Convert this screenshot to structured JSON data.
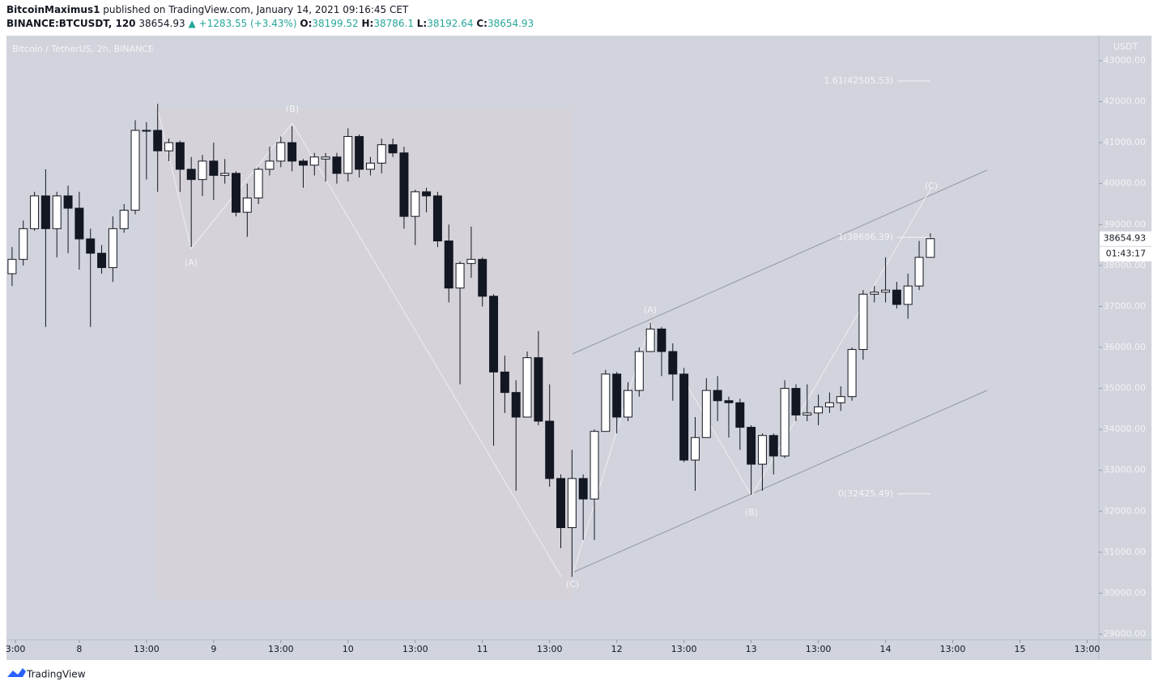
{
  "header": {
    "author": "BitcoinMaximus1",
    "published": "published on TradingView.com, January 14, 2021 09:16:45 CET",
    "symbol": "BINANCE:BTCUSDT, 120",
    "change": "+1283.55 (+3.43%)",
    "o_label": "O:",
    "h_label": "H:",
    "l_label": "L:",
    "c_label": "C:"
  },
  "footer": {
    "logo": "TradingView"
  },
  "chart_data": {
    "type": "candlestick",
    "title": "Bitcoin / TetherUS, 2h, BINANCE",
    "currency": "USDT",
    "countdown": "01:43:17",
    "open": [
      37800,
      38150,
      38900,
      39700,
      38900,
      39700,
      39400,
      38650,
      38300,
      37950,
      38900,
      39350,
      41280,
      41300,
      40800,
      41000,
      40350,
      40100,
      40550,
      40200,
      40250,
      39300,
      39650,
      40350,
      40550,
      41000,
      40550,
      40450,
      40600,
      40650,
      40250,
      41150,
      40350,
      40500,
      40950,
      40750,
      39200,
      39800,
      39700,
      38600,
      37450,
      38050,
      38150,
      37250,
      35400,
      34900,
      34300,
      35750,
      34200,
      32800,
      31600,
      32800,
      32300,
      33950,
      35350,
      34300,
      34950,
      35900,
      36450,
      35900,
      35350,
      33250,
      33800,
      34950,
      34700,
      34650,
      34050,
      33150,
      33850,
      33350,
      35000,
      34350,
      34400,
      34550,
      34650,
      34800,
      35950,
      37300,
      37350,
      37400,
      37050,
      37500,
      38199.52
    ],
    "high": [
      38450,
      39100,
      39800,
      40350,
      39800,
      39950,
      39800,
      38900,
      38500,
      39200,
      39500,
      41550,
      41500,
      41950,
      41100,
      41050,
      40650,
      40700,
      41000,
      40600,
      40300,
      40000,
      40400,
      40900,
      41150,
      41400,
      40600,
      40750,
      40750,
      40750,
      41350,
      41200,
      40650,
      41100,
      41100,
      40900,
      39850,
      39900,
      39800,
      39000,
      38100,
      38950,
      38200,
      37300,
      35800,
      35200,
      35900,
      36400,
      35100,
      32900,
      33500,
      32900,
      34000,
      35450,
      35400,
      35150,
      36000,
      36600,
      36500,
      36100,
      35500,
      34300,
      35250,
      35300,
      34800,
      34750,
      34100,
      33900,
      33900,
      35200,
      35100,
      35100,
      34850,
      34900,
      35050,
      36000,
      37400,
      37500,
      38200,
      37600,
      37800,
      38600,
      38786.1
    ],
    "low": [
      37500,
      38000,
      38850,
      36500,
      38200,
      38300,
      37900,
      36500,
      37800,
      37600,
      38800,
      39250,
      40100,
      39800,
      40550,
      39800,
      38450,
      39700,
      39600,
      40000,
      39200,
      38700,
      39500,
      40200,
      40400,
      40300,
      39900,
      40200,
      40050,
      40000,
      40050,
      40150,
      40200,
      40250,
      40650,
      38900,
      38500,
      39300,
      38450,
      37100,
      35100,
      37700,
      37000,
      33600,
      34400,
      32500,
      34300,
      34100,
      32600,
      31100,
      30400,
      31300,
      31300,
      33950,
      33900,
      34200,
      34800,
      35900,
      35300,
      34700,
      33200,
      32500,
      33800,
      34200,
      33800,
      33500,
      32400,
      32500,
      32900,
      33300,
      34200,
      34200,
      34100,
      34400,
      34450,
      34700,
      35700,
      37100,
      37100,
      36950,
      36700,
      37400,
      38192.64
    ],
    "close": [
      38150,
      38900,
      39700,
      38900,
      39700,
      39400,
      38650,
      38300,
      37950,
      38900,
      39350,
      41300,
      41300,
      40800,
      41000,
      40350,
      40100,
      40550,
      40200,
      40250,
      39300,
      39650,
      40350,
      40550,
      41000,
      40550,
      40450,
      40650,
      40650,
      40250,
      41150,
      40350,
      40500,
      40950,
      40750,
      39200,
      39800,
      39700,
      38600,
      37450,
      38050,
      38150,
      37250,
      35400,
      34900,
      34300,
      35750,
      34200,
      32800,
      31600,
      32800,
      32300,
      33950,
      35350,
      34300,
      34950,
      35900,
      36450,
      35900,
      35350,
      33250,
      33800,
      34950,
      34700,
      34650,
      34050,
      33150,
      33850,
      33350,
      35000,
      34350,
      34400,
      34550,
      34650,
      34800,
      35950,
      37300,
      37350,
      37400,
      37050,
      37500,
      38200,
      38654.93
    ],
    "up_color": "#ffffff",
    "down_color": "#131722",
    "xlim": [
      -0.5,
      97.05
    ],
    "xticks": [
      {
        "value": 0.3,
        "label": "3:00"
      },
      {
        "value": 6,
        "label": "8"
      },
      {
        "value": 12,
        "label": "13:00"
      },
      {
        "value": 18,
        "label": "9"
      },
      {
        "value": 24,
        "label": "13:00"
      },
      {
        "value": 30,
        "label": "10"
      },
      {
        "value": 36,
        "label": "13:00"
      },
      {
        "value": 42,
        "label": "11"
      },
      {
        "value": 48,
        "label": "13:00"
      },
      {
        "value": 54,
        "label": "12"
      },
      {
        "value": 60,
        "label": "13:00"
      },
      {
        "value": 66,
        "label": "13"
      },
      {
        "value": 72,
        "label": "13:00"
      },
      {
        "value": 78,
        "label": "14"
      },
      {
        "value": 84,
        "label": "13:00"
      },
      {
        "value": 90,
        "label": "15"
      },
      {
        "value": 96,
        "label": "13:00"
      }
    ],
    "ylim": [
      28862,
      43613
    ],
    "yticks": [
      {
        "value": 29000,
        "label": "29000.00"
      },
      {
        "value": 30000,
        "label": "30000.00"
      },
      {
        "value": 31000,
        "label": "31000.00"
      },
      {
        "value": 32000,
        "label": "32000.00"
      },
      {
        "value": 33000,
        "label": "33000.00"
      },
      {
        "value": 34000,
        "label": "34000.00"
      },
      {
        "value": 35000,
        "label": "35000.00"
      },
      {
        "value": 36000,
        "label": "36000.00"
      },
      {
        "value": 37000,
        "label": "37000.00"
      },
      {
        "value": 38000,
        "label": "38000.00"
      },
      {
        "value": 39000,
        "label": "39000.00"
      },
      {
        "value": 40000,
        "label": "40000.00"
      },
      {
        "value": 41000,
        "label": "41000.00"
      },
      {
        "value": 42000,
        "label": "42000.00"
      },
      {
        "value": 43000,
        "label": "43000.00"
      }
    ],
    "fib_levels": [
      {
        "value": 42505.53,
        "label": "1.61(42505.53)"
      },
      {
        "value": 38686.39,
        "label": "1(38686.39)"
      },
      {
        "value": 32425.49,
        "label": "0(32425.49)"
      }
    ],
    "wave_labels": [
      "(A)",
      "(B)",
      "(C)",
      "(A)",
      "(B)",
      "(C)"
    ]
  }
}
